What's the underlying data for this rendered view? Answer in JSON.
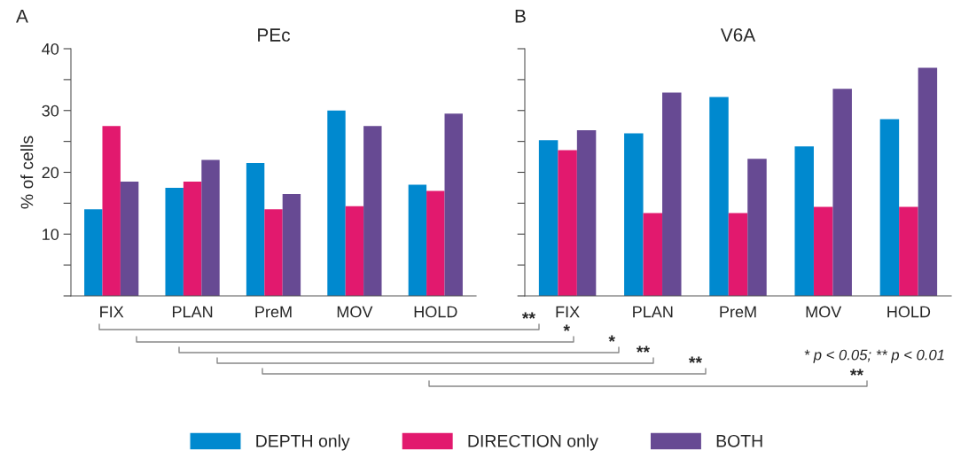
{
  "chart_data": [
    {
      "type": "bar",
      "title": "PEc",
      "ylabel": "% of cells",
      "categories": [
        "FIX",
        "PLAN",
        "PreM",
        "MOV",
        "HOLD"
      ],
      "series": [
        {
          "name": "DEPTH only",
          "color": "#0089cf",
          "values": [
            14,
            17.5,
            21.5,
            30,
            18
          ]
        },
        {
          "name": "DIRECTION only",
          "color": "#e2196e",
          "values": [
            27.5,
            18.5,
            14,
            14.5,
            17
          ]
        },
        {
          "name": "BOTH",
          "color": "#674a93",
          "values": [
            18.5,
            22,
            16.5,
            27.5,
            29.5
          ]
        }
      ],
      "ylim": [
        0,
        40
      ],
      "yticks": [
        {
          "value": 0,
          "label": null
        },
        {
          "value": 5,
          "label": null
        },
        10,
        {
          "value": 15,
          "label": null
        },
        20,
        {
          "value": 25,
          "label": null
        },
        30,
        {
          "value": 35,
          "label": null
        },
        40
      ],
      "annotations": [
        "A"
      ],
      "legend": "bottom",
      "grid": false
    },
    {
      "type": "bar",
      "title": "V6A",
      "categories": [
        "FIX",
        "PLAN",
        "PreM",
        "MOV",
        "HOLD"
      ],
      "series": [
        {
          "color": "#0089cf",
          "values": [
            25.2,
            26.3,
            32.2,
            24.2,
            28.6
          ]
        },
        {
          "color": "#e2196e",
          "values": [
            23.6,
            13.4,
            13.4,
            14.4,
            14.4
          ]
        },
        {
          "color": "#674a93",
          "values": [
            26.8,
            32.9,
            22.2,
            33.5,
            36.9
          ]
        }
      ],
      "ylim": [
        0,
        40
      ],
      "yticks": [
        {
          "value": 0,
          "label": null
        },
        {
          "value": 5,
          "label": null
        },
        10,
        {
          "value": 15,
          "label": null
        },
        20,
        {
          "value": 25,
          "label": null
        },
        30,
        {
          "value": 35,
          "label": null
        },
        40
      ],
      "tick_labels": "x",
      "annotations": [
        "B",
        "**",
        "*",
        "*",
        "**",
        "**",
        "**",
        "* p < 0.05; ** p < 0.01"
      ],
      "grid": false
    }
  ]
}
